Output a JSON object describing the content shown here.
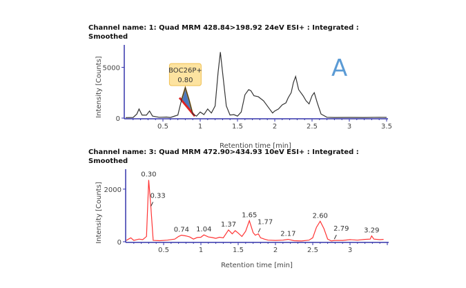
{
  "chart_data": [
    {
      "type": "line",
      "title_line1": "Channel name: 1: Quad MRM 428.84>198.92 24eV ESI+ : Integrated :",
      "title_line2": "Smoothed",
      "xlabel": "Retention time [min]",
      "ylabel": "Intensity [Counts]",
      "xlim": [
        0,
        3.5
      ],
      "ylim": [
        0,
        6800
      ],
      "xticks": [
        0.5,
        1,
        1.5,
        2,
        2.5,
        3,
        3.5
      ],
      "xtick_labels": [
        "0.5",
        "1",
        "1.5",
        "2",
        "2.5",
        "3",
        "3.5"
      ],
      "yticks": [
        0,
        5000
      ],
      "ytick_labels": [
        "0",
        "5000"
      ],
      "line_color": "#333333",
      "axis_color": "#3333aa",
      "panel_label": "A",
      "panel_label_color": "#5b9bd5",
      "integrated_peak": {
        "name": "BOC26P+",
        "rt": "0.80",
        "range": [
          0.72,
          0.92
        ],
        "fill": "#4a78c0",
        "box_color": "#fde3a0"
      },
      "points": [
        [
          0,
          50
        ],
        [
          0.1,
          60
        ],
        [
          0.15,
          400
        ],
        [
          0.18,
          900
        ],
        [
          0.22,
          300
        ],
        [
          0.28,
          300
        ],
        [
          0.32,
          700
        ],
        [
          0.36,
          200
        ],
        [
          0.45,
          80
        ],
        [
          0.55,
          100
        ],
        [
          0.6,
          60
        ],
        [
          0.7,
          300
        ],
        [
          0.75,
          1800
        ],
        [
          0.8,
          3000
        ],
        [
          0.85,
          1800
        ],
        [
          0.9,
          400
        ],
        [
          0.95,
          200
        ],
        [
          1.0,
          600
        ],
        [
          1.05,
          350
        ],
        [
          1.1,
          900
        ],
        [
          1.15,
          500
        ],
        [
          1.2,
          1200
        ],
        [
          1.24,
          4500
        ],
        [
          1.27,
          6500
        ],
        [
          1.3,
          4500
        ],
        [
          1.35,
          1200
        ],
        [
          1.4,
          300
        ],
        [
          1.45,
          350
        ],
        [
          1.5,
          200
        ],
        [
          1.55,
          600
        ],
        [
          1.6,
          2300
        ],
        [
          1.65,
          2800
        ],
        [
          1.68,
          2700
        ],
        [
          1.72,
          2200
        ],
        [
          1.78,
          2100
        ],
        [
          1.85,
          1700
        ],
        [
          1.92,
          1000
        ],
        [
          1.97,
          500
        ],
        [
          2.0,
          700
        ],
        [
          2.05,
          900
        ],
        [
          2.1,
          1300
        ],
        [
          2.15,
          1500
        ],
        [
          2.18,
          2000
        ],
        [
          2.22,
          2500
        ],
        [
          2.25,
          3500
        ],
        [
          2.28,
          4100
        ],
        [
          2.32,
          2800
        ],
        [
          2.38,
          2200
        ],
        [
          2.42,
          1700
        ],
        [
          2.46,
          1400
        ],
        [
          2.5,
          2200
        ],
        [
          2.53,
          2500
        ],
        [
          2.57,
          1500
        ],
        [
          2.62,
          400
        ],
        [
          2.7,
          80
        ],
        [
          2.8,
          60
        ],
        [
          3.0,
          70
        ],
        [
          3.2,
          60
        ],
        [
          3.4,
          80
        ],
        [
          3.5,
          70
        ]
      ]
    },
    {
      "type": "line",
      "title_line1": "Channel name: 3: Quad MRM 472.90>434.93 10eV ESI+ : Integrated :",
      "title_line2": "Smoothed",
      "xlabel": "Retention time [min]",
      "ylabel": "Intensity [Counts]",
      "xlim": [
        0,
        3.5
      ],
      "ylim": [
        0,
        2600
      ],
      "xticks": [
        0.5,
        1,
        1.5,
        2,
        2.5,
        3
      ],
      "xtick_labels": [
        "0.5",
        "1",
        "1.5",
        "2",
        "2.5",
        "3"
      ],
      "yticks": [
        0,
        2000
      ],
      "ytick_labels": [
        "0",
        "2000"
      ],
      "line_color": "#ff3333",
      "axis_color": "#3333aa",
      "peak_labels": [
        {
          "rt": 0.3,
          "text": "0.30",
          "y": 2350
        },
        {
          "rt": 0.33,
          "text": "0.33",
          "y": 1300
        },
        {
          "rt": 0.74,
          "text": "0.74",
          "y": 250
        },
        {
          "rt": 1.04,
          "text": "1.04",
          "y": 260
        },
        {
          "rt": 1.37,
          "text": "1.37",
          "y": 450
        },
        {
          "rt": 1.65,
          "text": "1.65",
          "y": 800
        },
        {
          "rt": 1.77,
          "text": "1.77",
          "y": 300
        },
        {
          "rt": 2.17,
          "text": "2.17",
          "y": 90
        },
        {
          "rt": 2.6,
          "text": "2.60",
          "y": 780
        },
        {
          "rt": 2.79,
          "text": "2.79",
          "y": 50
        },
        {
          "rt": 3.29,
          "text": "3.29",
          "y": 220
        }
      ],
      "points": [
        [
          0,
          50
        ],
        [
          0.03,
          100
        ],
        [
          0.06,
          150
        ],
        [
          0.1,
          50
        ],
        [
          0.17,
          100
        ],
        [
          0.22,
          80
        ],
        [
          0.27,
          200
        ],
        [
          0.3,
          2350
        ],
        [
          0.33,
          1300
        ],
        [
          0.36,
          50
        ],
        [
          0.45,
          40
        ],
        [
          0.55,
          60
        ],
        [
          0.65,
          100
        ],
        [
          0.7,
          200
        ],
        [
          0.74,
          250
        ],
        [
          0.8,
          220
        ],
        [
          0.85,
          180
        ],
        [
          0.9,
          100
        ],
        [
          0.95,
          160
        ],
        [
          1.0,
          170
        ],
        [
          1.04,
          260
        ],
        [
          1.1,
          180
        ],
        [
          1.15,
          160
        ],
        [
          1.2,
          130
        ],
        [
          1.25,
          170
        ],
        [
          1.3,
          150
        ],
        [
          1.37,
          450
        ],
        [
          1.42,
          300
        ],
        [
          1.46,
          420
        ],
        [
          1.5,
          330
        ],
        [
          1.55,
          200
        ],
        [
          1.6,
          400
        ],
        [
          1.65,
          800
        ],
        [
          1.7,
          350
        ],
        [
          1.73,
          250
        ],
        [
          1.77,
          300
        ],
        [
          1.8,
          150
        ],
        [
          1.85,
          100
        ],
        [
          1.9,
          60
        ],
        [
          2.0,
          50
        ],
        [
          2.1,
          60
        ],
        [
          2.17,
          90
        ],
        [
          2.25,
          40
        ],
        [
          2.35,
          30
        ],
        [
          2.45,
          60
        ],
        [
          2.5,
          150
        ],
        [
          2.55,
          550
        ],
        [
          2.6,
          780
        ],
        [
          2.65,
          500
        ],
        [
          2.7,
          100
        ],
        [
          2.75,
          30
        ],
        [
          2.79,
          50
        ],
        [
          2.9,
          50
        ],
        [
          3.0,
          80
        ],
        [
          3.1,
          60
        ],
        [
          3.2,
          90
        ],
        [
          3.27,
          100
        ],
        [
          3.29,
          220
        ],
        [
          3.32,
          100
        ],
        [
          3.4,
          80
        ],
        [
          3.45,
          90
        ]
      ]
    }
  ]
}
